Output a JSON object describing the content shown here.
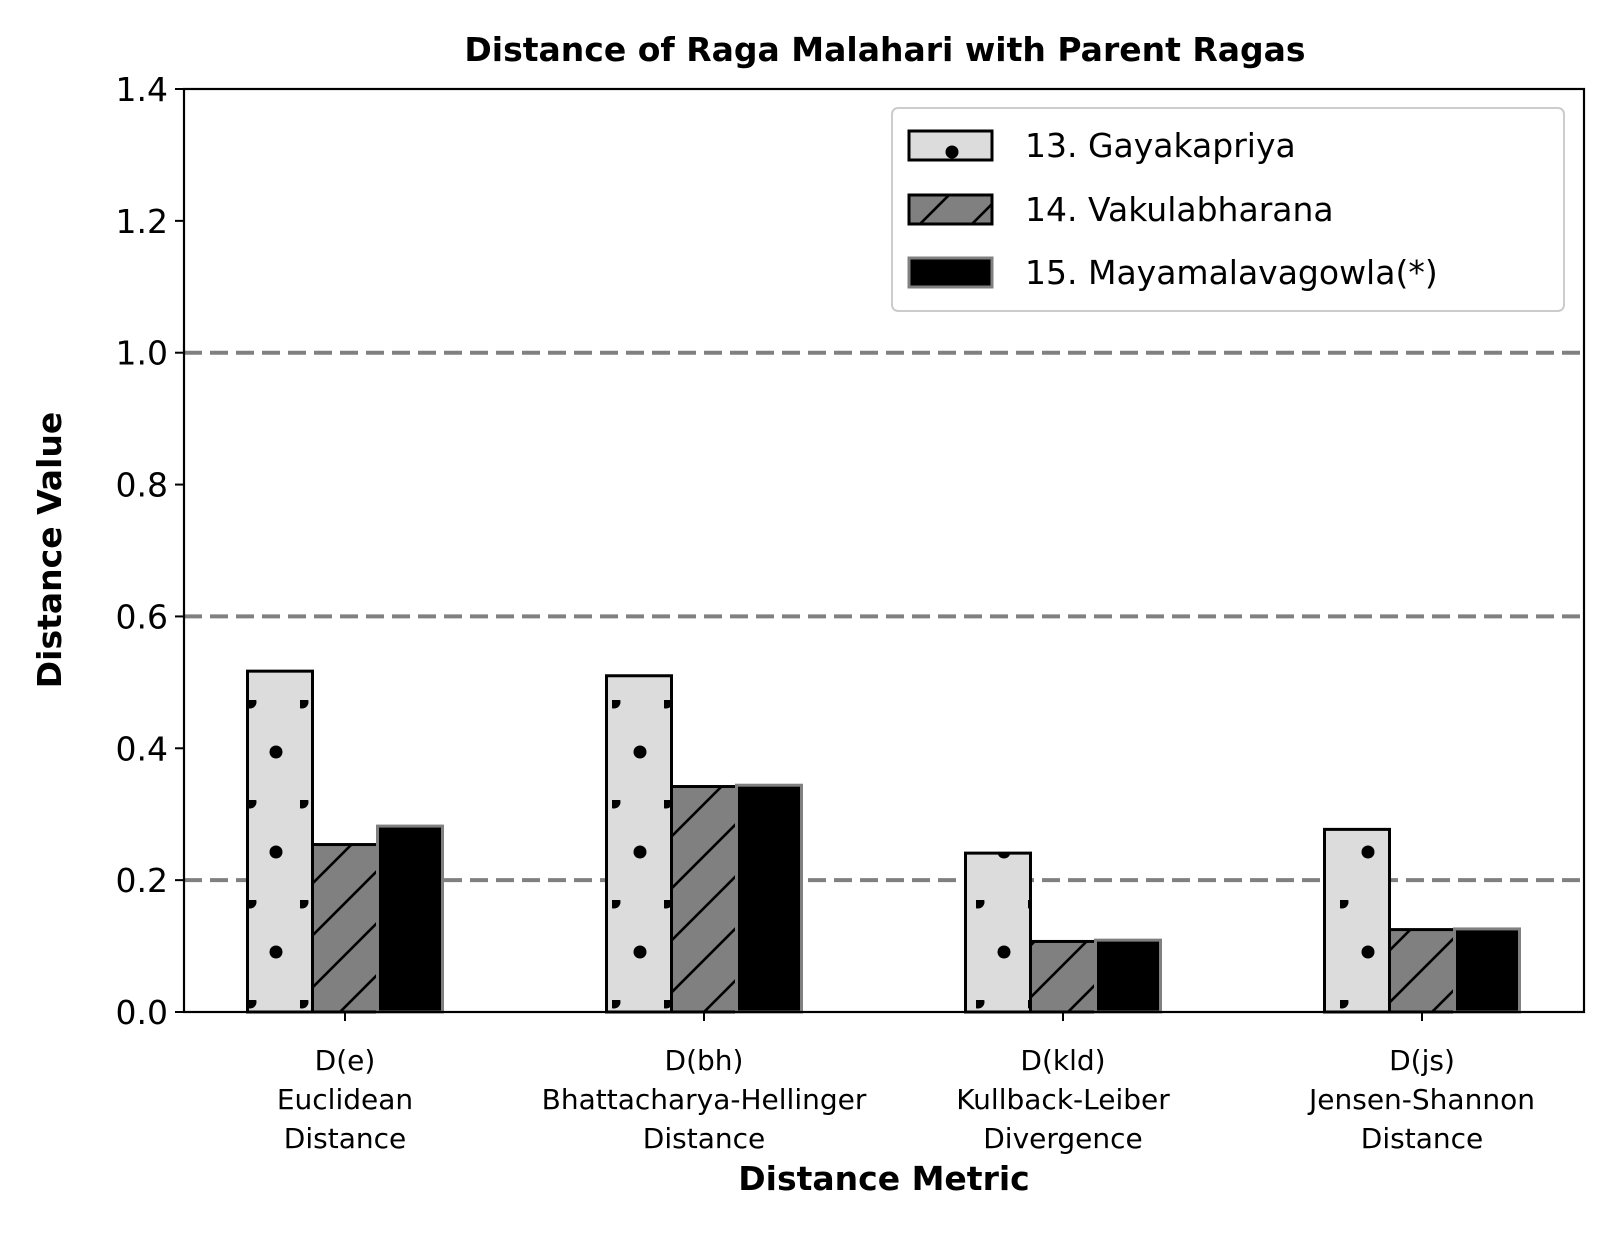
{
  "chart_data": {
    "type": "bar",
    "title": "Distance of Raga Malahari with Parent Ragas",
    "xlabel": "Distance Metric",
    "ylabel": "Distance Value",
    "ylim": [
      0,
      1.4
    ],
    "yticks": [
      "0.0",
      "0.2",
      "0.4",
      "0.6",
      "0.8",
      "1.0",
      "1.2",
      "1.4"
    ],
    "categories": [
      [
        "D(e)",
        "Euclidean",
        "Distance"
      ],
      [
        "D(bh)",
        "Bhattacharya-Hellinger",
        "Distance"
      ],
      [
        "D(kld)",
        "Kullback-Leiber",
        "Divergence"
      ],
      [
        "D(js)",
        "Jensen-Shannon",
        "Distance"
      ]
    ],
    "series": [
      {
        "name": "13. Gayakapriya",
        "values": [
          0.517,
          0.51,
          0.241,
          0.277
        ],
        "color": "#dcdcdc",
        "hatch": "dots",
        "edge": "#000000"
      },
      {
        "name": "14. Vakulabharana",
        "values": [
          0.254,
          0.342,
          0.107,
          0.125
        ],
        "color": "#808080",
        "hatch": "diagonal",
        "edge": "#000000"
      },
      {
        "name": "15. Mayamalavagowla(*)",
        "values": [
          0.282,
          0.344,
          0.109,
          0.126
        ],
        "color": "#000000",
        "hatch": "none",
        "edge": "#808080"
      }
    ],
    "reference_lines": [
      0.2,
      0.6,
      1.0
    ],
    "reference_line_style": "dashed",
    "reference_line_color": "#808080",
    "grid": false,
    "legend_position": "top-right"
  }
}
